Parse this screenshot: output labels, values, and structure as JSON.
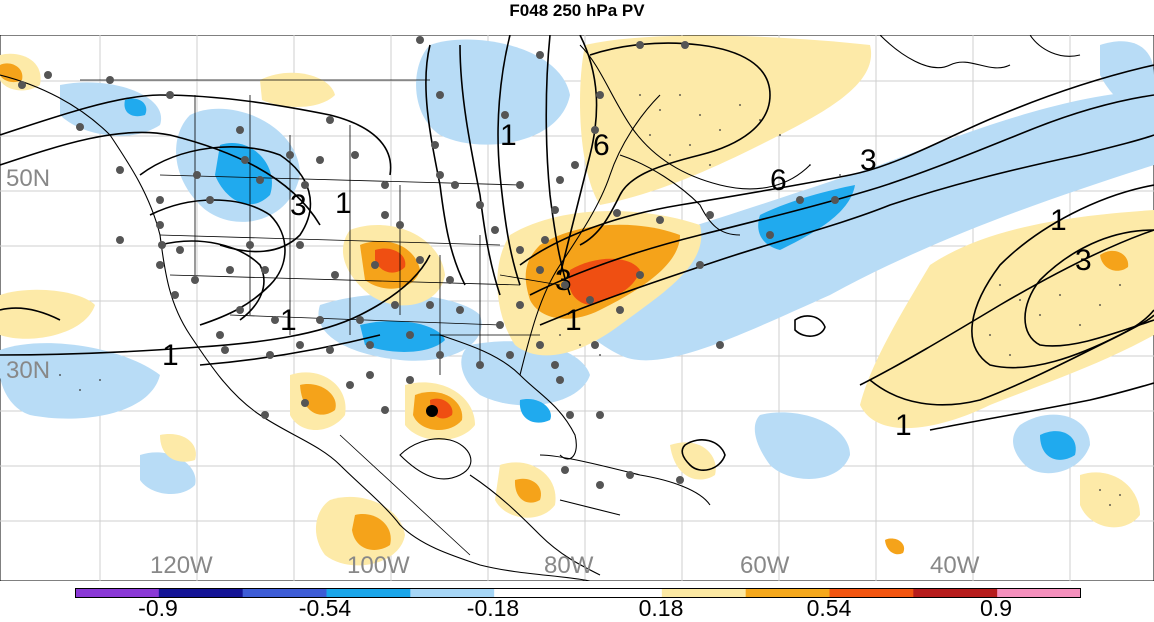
{
  "title": "F048 250 hPa PV",
  "lat_labels": [
    "50N",
    "30N"
  ],
  "lon_labels": [
    "120W",
    "100W",
    "80W",
    "60W",
    "40W"
  ],
  "contour_labels": [
    "1",
    "3",
    "6",
    "1",
    "3",
    "6",
    "3",
    "1",
    "3",
    "1",
    "1",
    "1",
    "1"
  ],
  "colorbar": {
    "ticks": [
      "-0.9",
      "-0.54",
      "-0.18",
      "0.18",
      "0.54",
      "0.9"
    ],
    "colors": [
      "#8a38d6",
      "#141496",
      "#3d5cd6",
      "#1aa6ea",
      "#a6d6f6",
      "#ffffff",
      "#ffffff",
      "#fce9a3",
      "#f5a81c",
      "#f25510",
      "#b61c1c",
      "#f590bd"
    ]
  },
  "palette": {
    "neg_light": "#b8dcf6",
    "neg_mid": "#20aaee",
    "pos_light": "#fdeaa8",
    "pos_mid": "#f5a31a",
    "pos_strong": "#ef4f12",
    "land_line": "#000000",
    "grid": "#cccccc",
    "station": "#555555"
  }
}
